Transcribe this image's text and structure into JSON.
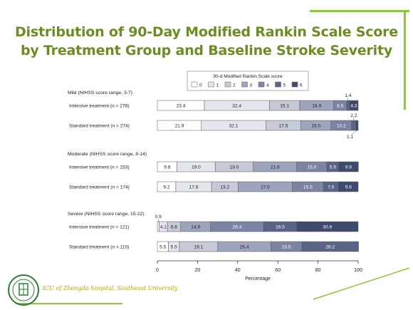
{
  "slide": {
    "title_line1": "Distribution of 90-Day Modified Rankin Scale Score",
    "title_line2": "by Treatment Group and Baseline Stroke Severity",
    "footer_text": "ICU of Zhongda hospital, Southeast University",
    "accent_color": "#8dc63f",
    "title_color": "#6b8e23"
  },
  "chart_data": {
    "type": "bar",
    "orientation": "horizontal-stacked",
    "legend_title": "90-d Modified Rankin Scale score",
    "legend_labels": [
      "0",
      "1",
      "2",
      "3",
      "4",
      "5",
      "6"
    ],
    "colors": [
      "#ffffff",
      "#e4e6ee",
      "#c5c9d8",
      "#9ea4bc",
      "#7b84a2",
      "#596486",
      "#3e4b6e"
    ],
    "xlabel": "Percentage",
    "xlim": [
      0,
      100
    ],
    "xticks": [
      0,
      20,
      40,
      60,
      80,
      100
    ],
    "groups": [
      {
        "label": "Mild (NIHSS score range, 3-7)",
        "rows": [
          {
            "label": "Intensive treatment (n = 278)",
            "values": [
              23.4,
              32.4,
              15.1,
              16.9,
              6.5,
              1.4,
              4.3
            ],
            "outside_labels": [
              {
                "index": 5,
                "text": "1.4",
                "position": "above"
              }
            ]
          },
          {
            "label": "Standard treatment (n = 274)",
            "values": [
              21.9,
              32.1,
              17.5,
              15.0,
              10.2,
              2.2,
              1.1
            ],
            "outside_labels": [
              {
                "index": 5,
                "text": "2.2",
                "position": "above"
              },
              {
                "index": 6,
                "text": "1.1",
                "position": "below"
              }
            ]
          }
        ]
      },
      {
        "label": "Moderate (NIHSS score range, 8-14)",
        "rows": [
          {
            "label": "Intensive treatment (n = 153)",
            "values": [
              9.8,
              19.0,
              19.0,
              21.6,
              15.0,
              5.9,
              9.8
            ],
            "outside_labels": []
          },
          {
            "label": "Standard treatment (n = 174)",
            "values": [
              9.2,
              17.8,
              13.2,
              27.0,
              15.5,
              7.5,
              9.8
            ],
            "outside_labels": []
          }
        ]
      },
      {
        "label": "Severe (NIHSS score range, 15-22)",
        "rows": [
          {
            "label": "Intensive treatment (n = 121)",
            "values": [
              0.9,
              4.1,
              6.6,
              14.9,
              26.4,
              16.5,
              30.6
            ],
            "outside_labels": [
              {
                "index": 0,
                "text": "0.9",
                "position": "above"
              }
            ]
          },
          {
            "label": "Standard treatment (n = 110)",
            "values": [
              5.5,
              5.5,
              19.1,
              26.4,
              15.5,
              28.2,
              0
            ],
            "outside_labels": []
          }
        ]
      }
    ]
  }
}
